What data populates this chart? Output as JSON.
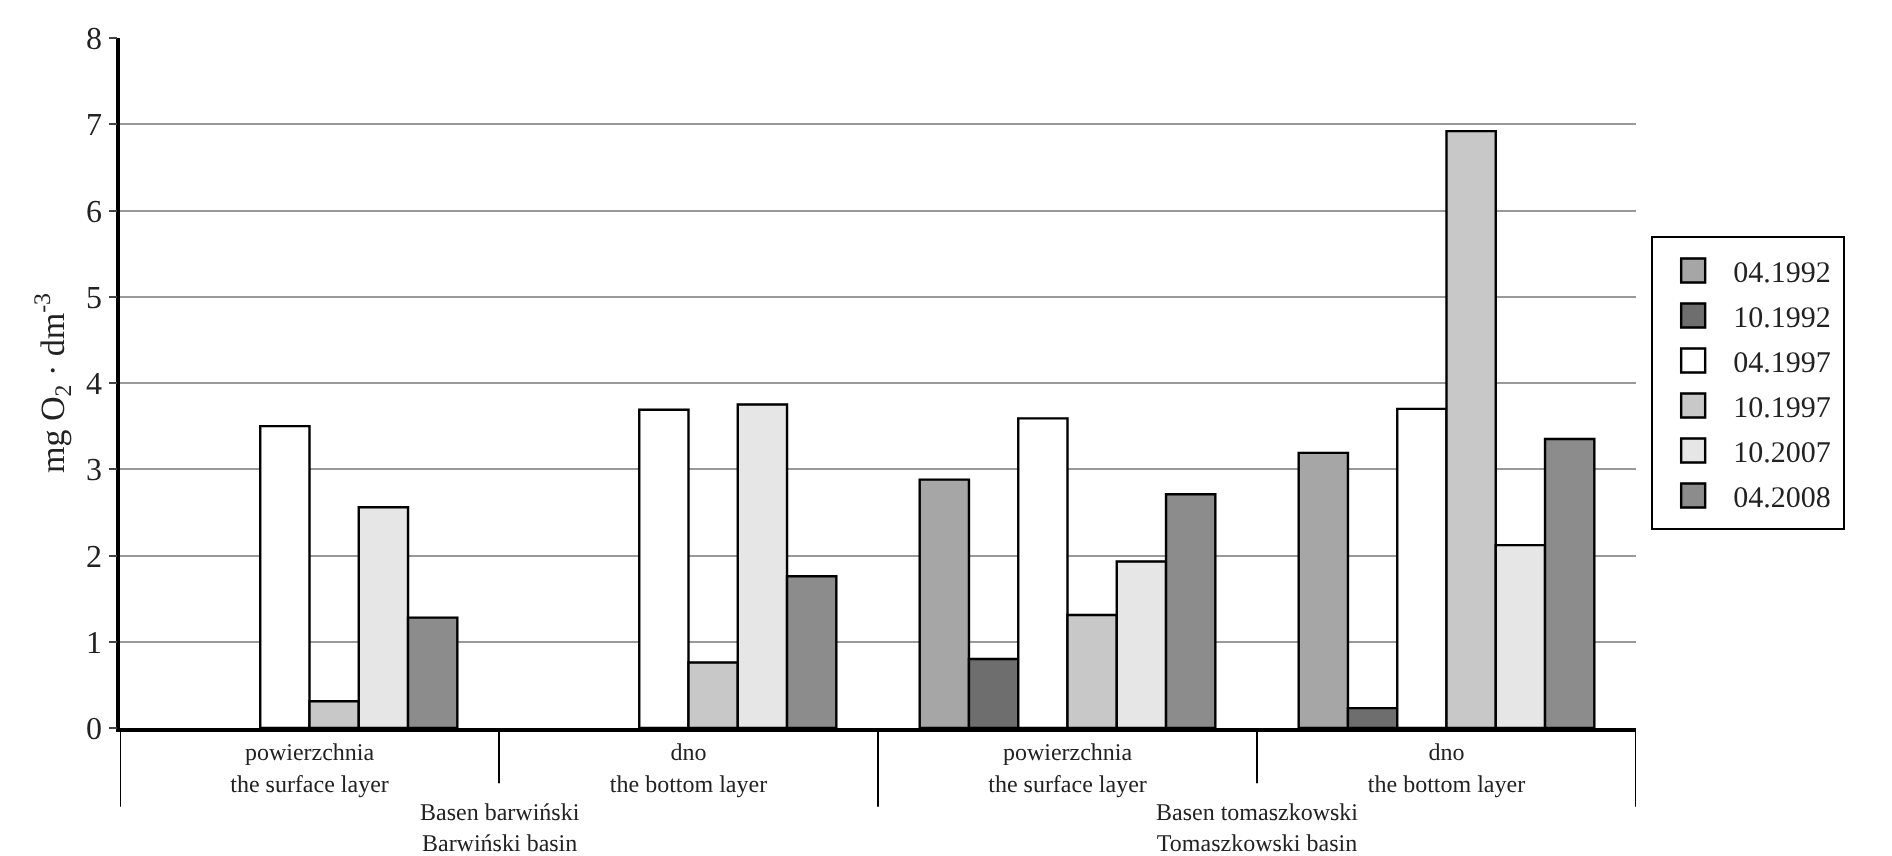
{
  "chart_data": {
    "type": "bar",
    "ylabel": "mg O$_{2}$ · dm$^{-3}$",
    "categories": [
      "powierzchnia\nthe surface layer",
      "dno\nthe bottom layer",
      "powierzchnia\nthe surface layer",
      "dno\nthe bottom layer"
    ],
    "series": [
      {
        "name": "04.1992",
        "color": "#a6a6a6",
        "values": [
          null,
          null,
          2.88,
          3.19
        ]
      },
      {
        "name": "10.1992",
        "color": "#6e6e6e",
        "values": [
          null,
          null,
          0.8,
          0.23
        ]
      },
      {
        "name": "04.1997",
        "color": "#ffffff",
        "values": [
          3.5,
          3.69,
          3.59,
          3.7
        ]
      },
      {
        "name": "10.1997",
        "color": "#c8c8c8",
        "values": [
          0.31,
          0.76,
          1.31,
          6.92
        ]
      },
      {
        "name": "10.2007",
        "color": "#e6e6e6",
        "values": [
          2.56,
          3.75,
          1.93,
          2.12
        ]
      },
      {
        "name": "04.2008",
        "color": "#8c8c8c",
        "values": [
          1.28,
          1.76,
          2.71,
          3.35
        ]
      }
    ],
    "ylim": [
      0,
      8
    ],
    "yticks": [
      0,
      1,
      2,
      3,
      4,
      5,
      6,
      7,
      8
    ],
    "grid": "y",
    "legend": "right",
    "annotations": [
      "Basen barwiński\nBarwiński basin",
      "Basen tomaszkowski\nTomaszkowski basin"
    ]
  }
}
